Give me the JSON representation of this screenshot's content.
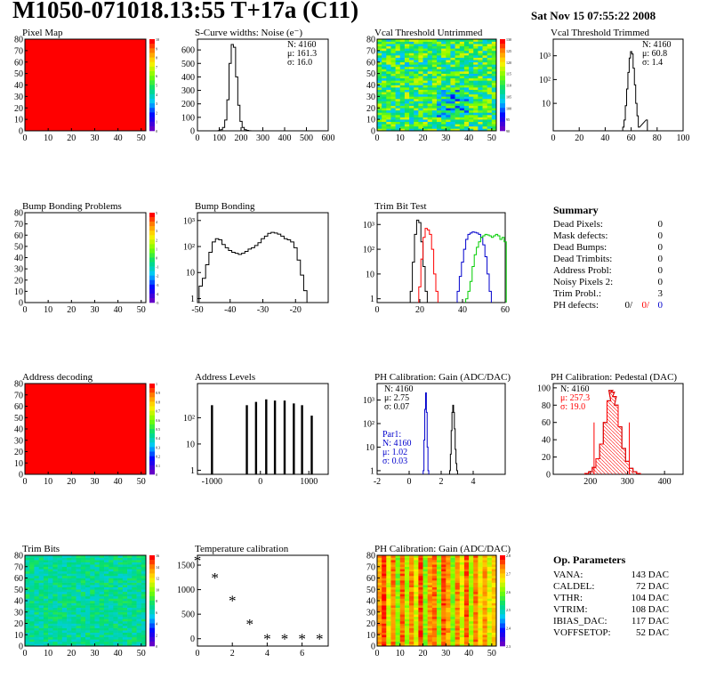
{
  "header": {
    "title": "M1050-071018.13:55 T+17a (C11)",
    "date": "Sat Nov 15 07:55:22 2008"
  },
  "colors": {
    "red": "#ff0000",
    "blue": "#0000cc",
    "green": "#00cc00",
    "black": "#000000"
  },
  "chart_data": [
    {
      "id": "pixel-map",
      "type": "heatmap",
      "title": "Pixel Map",
      "xlim": [
        0,
        52
      ],
      "ylim": [
        0,
        80
      ],
      "xticks": [
        0,
        10,
        20,
        30,
        40,
        50
      ],
      "yticks": [
        0,
        10,
        20,
        30,
        40,
        50,
        60,
        70,
        80
      ],
      "fill": "uniform",
      "value": 10,
      "zlim": [
        0,
        10
      ],
      "palette_ticks": [
        "10",
        "9",
        "8",
        "7",
        "6",
        "5",
        "4",
        "3",
        "2",
        "1",
        "0"
      ]
    },
    {
      "id": "scurve-noise",
      "type": "histogram",
      "title": "S-Curve widths: Noise (e⁻)",
      "xlim": [
        0,
        600
      ],
      "ylim": [
        0,
        680
      ],
      "xticks": [
        0,
        100,
        200,
        300,
        400,
        500,
        600
      ],
      "yticks": [
        0,
        100,
        200,
        300,
        400,
        500,
        600
      ],
      "stats": [
        "N: 4160",
        "μ: 161.3",
        "σ: 16.0"
      ],
      "series": [
        {
          "color": "black",
          "x": [
            100,
            110,
            120,
            130,
            140,
            150,
            160,
            170,
            180,
            190,
            200,
            210,
            220,
            230,
            240
          ],
          "y": [
            2,
            8,
            25,
            80,
            230,
            500,
            640,
            620,
            400,
            190,
            70,
            25,
            8,
            3,
            1
          ]
        }
      ]
    },
    {
      "id": "vcal-untrimmed",
      "type": "heatmap",
      "title": "Vcal Threshold Untrimmed",
      "xlim": [
        0,
        52
      ],
      "ylim": [
        0,
        80
      ],
      "xticks": [
        0,
        10,
        20,
        30,
        40,
        50
      ],
      "yticks": [
        0,
        10,
        20,
        30,
        40,
        50,
        60,
        70,
        80
      ],
      "fill": "noise",
      "mean": 0.5,
      "spread": 0.22,
      "seed": 11,
      "palette_ticks": [
        "130",
        "125",
        "120",
        "115",
        "110",
        "105",
        "100",
        "95",
        "90"
      ]
    },
    {
      "id": "vcal-trimmed",
      "type": "histogram",
      "title": "Vcal Threshold Trimmed",
      "xlim": [
        0,
        100
      ],
      "log": true,
      "ylim": [
        0.7,
        5000
      ],
      "xticks": [
        0,
        20,
        40,
        60,
        80,
        100
      ],
      "yticks": [
        10,
        100,
        1000
      ],
      "ytick_labels": [
        "10",
        "10²",
        "10³"
      ],
      "stats": [
        "N: 4160",
        "μ: 60.8",
        "σ: 1.4"
      ],
      "series": [
        {
          "color": "black",
          "x": [
            54,
            55,
            56,
            57,
            58,
            59,
            60,
            61,
            62,
            63,
            64,
            65,
            66,
            72
          ],
          "y": [
            1,
            2,
            8,
            40,
            200,
            800,
            1500,
            1200,
            300,
            60,
            10,
            3,
            1,
            2
          ]
        }
      ]
    },
    {
      "id": "bump-bonding-problems",
      "type": "heatmap",
      "title": "Bump Bonding Problems",
      "xlim": [
        0,
        52
      ],
      "ylim": [
        0,
        80
      ],
      "xticks": [
        0,
        10,
        20,
        30,
        40,
        50
      ],
      "yticks": [
        0,
        10,
        20,
        30,
        40,
        50,
        60,
        70,
        80
      ],
      "fill": "empty",
      "palette_ticks": [
        "5",
        "4",
        "3",
        "2",
        "1",
        "0",
        "-1",
        "-2",
        "-3",
        "-4",
        "-5"
      ]
    },
    {
      "id": "bump-bonding",
      "type": "histogram",
      "title": "Bump Bonding",
      "xlim": [
        -50,
        -10
      ],
      "log": true,
      "ylim": [
        0.7,
        2000
      ],
      "xticks": [
        -50,
        -40,
        -30,
        -20
      ],
      "yticks": [
        1,
        10,
        100,
        1000
      ],
      "ytick_labels": [
        "1",
        "10",
        "10²",
        "10³"
      ],
      "series": [
        {
          "color": "black",
          "x": [
            -49,
            -48,
            -47,
            -46,
            -45,
            -44,
            -43,
            -42,
            -41,
            -40,
            -39,
            -38,
            -37,
            -36,
            -35,
            -34,
            -33,
            -32,
            -31,
            -30,
            -29,
            -28,
            -27,
            -26,
            -25,
            -24,
            -23,
            -22,
            -21,
            -20,
            -19,
            -18,
            -17,
            -16
          ],
          "y": [
            3,
            6,
            20,
            60,
            150,
            200,
            180,
            120,
            90,
            70,
            60,
            55,
            50,
            55,
            65,
            80,
            90,
            110,
            140,
            200,
            250,
            320,
            350,
            330,
            300,
            250,
            200,
            180,
            150,
            90,
            30,
            8,
            2,
            0.6
          ]
        }
      ]
    },
    {
      "id": "trim-bit-test",
      "type": "histogram",
      "title": "Trim Bit Test",
      "xlim": [
        0,
        60
      ],
      "log": true,
      "ylim": [
        0.7,
        3000
      ],
      "xticks": [
        0,
        20,
        40,
        60
      ],
      "yticks": [
        1,
        10,
        100,
        1000
      ],
      "ytick_labels": [
        "1",
        "10",
        "10²",
        "10³"
      ],
      "series": [
        {
          "color": "black",
          "x": [
            16,
            17,
            18,
            19,
            20,
            21,
            22,
            23
          ],
          "y": [
            2,
            30,
            400,
            1500,
            1200,
            200,
            20,
            2
          ]
        },
        {
          "color": "red",
          "x": [
            20,
            21,
            22,
            23,
            24,
            25,
            26,
            27,
            28
          ],
          "y": [
            3,
            40,
            300,
            700,
            600,
            400,
            100,
            10,
            2
          ]
        },
        {
          "color": "blue",
          "x": [
            38,
            39,
            40,
            41,
            42,
            43,
            44,
            45,
            46,
            47,
            48,
            49,
            50,
            51,
            52,
            53
          ],
          "y": [
            2,
            8,
            30,
            100,
            250,
            400,
            450,
            500,
            480,
            450,
            400,
            300,
            150,
            50,
            10,
            2
          ]
        },
        {
          "color": "green",
          "x": [
            42,
            43,
            44,
            45,
            46,
            47,
            48,
            49,
            50,
            51,
            52,
            53,
            54,
            55,
            56,
            57,
            58,
            59,
            60
          ],
          "y": [
            1,
            2,
            5,
            20,
            60,
            120,
            200,
            300,
            350,
            400,
            380,
            350,
            300,
            350,
            400,
            350,
            250,
            300,
            200
          ]
        }
      ]
    },
    {
      "id": "address-decoding",
      "type": "heatmap",
      "title": "Address decoding",
      "xlim": [
        0,
        52
      ],
      "ylim": [
        0,
        80
      ],
      "xticks": [
        0,
        10,
        20,
        30,
        40,
        50
      ],
      "yticks": [
        0,
        10,
        20,
        30,
        40,
        50,
        60,
        70,
        80
      ],
      "fill": "uniform",
      "value": 1,
      "zlim": [
        0,
        1
      ],
      "palette_ticks": [
        "1",
        "0.9",
        "0.8",
        "0.7",
        "0.6",
        "0.5",
        "0.4",
        "0.3",
        "0.2",
        "0.1",
        "0"
      ]
    },
    {
      "id": "address-levels",
      "type": "histogram",
      "title": "Address Levels",
      "xlim": [
        -1300,
        1400
      ],
      "log": true,
      "ylim": [
        0.7,
        2000
      ],
      "xticks": [
        -1000,
        0,
        1000
      ],
      "yticks": [
        1,
        10,
        100
      ],
      "ytick_labels": [
        "1",
        "10",
        "10²"
      ],
      "spikes": true,
      "series": [
        {
          "color": "black",
          "x": [
            -1000,
            -280,
            -90,
            120,
            300,
            500,
            690,
            860,
            1060
          ],
          "y": [
            300,
            300,
            400,
            500,
            450,
            450,
            350,
            300,
            120
          ]
        }
      ]
    },
    {
      "id": "ph-gain",
      "type": "histogram",
      "title": "PH Calibration: Gain (ADC/DAC)",
      "xlim": [
        -2,
        6
      ],
      "log": true,
      "ylim": [
        0.7,
        5000
      ],
      "xticks": [
        -2,
        0,
        2,
        4
      ],
      "yticks": [
        1,
        10,
        100,
        1000
      ],
      "ytick_labels": [
        "1",
        "10",
        "10²",
        "10³"
      ],
      "stats": [
        "N: 4160",
        "μ: 2.75",
        "σ: 0.07"
      ],
      "stats2": [
        "Par1:",
        "N: 4160",
        "μ: 1.02",
        "σ: 0.03"
      ],
      "series": [
        {
          "color": "blue",
          "x": [
            0.9,
            0.95,
            1.0,
            1.05,
            1.1,
            1.15,
            1.2
          ],
          "y": [
            1,
            20,
            400,
            2000,
            300,
            10,
            1
          ]
        },
        {
          "color": "black",
          "x": [
            2.55,
            2.6,
            2.65,
            2.7,
            2.75,
            2.8,
            2.85,
            2.9,
            2.95,
            3.0
          ],
          "y": [
            1,
            5,
            50,
            300,
            600,
            300,
            60,
            8,
            2,
            1
          ]
        }
      ]
    },
    {
      "id": "ph-pedestal",
      "type": "histogram",
      "title": "PH Calibration: Pedestal (DAC)",
      "xlim": [
        100,
        450
      ],
      "ylim": [
        0,
        105
      ],
      "xticks": [
        200,
        300,
        400
      ],
      "yticks": [
        0,
        20,
        40,
        60,
        80,
        100
      ],
      "stats": [
        "N: 4160"
      ],
      "stats_red": [
        "μ: 257.3",
        "σ: 19.0"
      ],
      "series": [
        {
          "color": "black",
          "x": [
            190,
            200,
            210,
            220,
            230,
            240,
            250,
            255,
            260,
            265,
            270,
            280,
            290,
            300,
            310,
            320,
            330
          ],
          "y": [
            1,
            3,
            8,
            18,
            35,
            60,
            85,
            97,
            95,
            90,
            80,
            55,
            30,
            15,
            7,
            3,
            1
          ]
        },
        {
          "color": "red",
          "x": [
            190,
            200,
            210,
            220,
            230,
            240,
            250,
            255,
            260,
            265,
            270,
            280,
            290,
            300,
            310,
            320,
            330
          ],
          "y": [
            1,
            3,
            8,
            18,
            35,
            60,
            85,
            97,
            95,
            90,
            80,
            55,
            30,
            15,
            7,
            3,
            1
          ]
        }
      ],
      "limit_lines": [
        210,
        305
      ]
    },
    {
      "id": "trim-bits",
      "type": "heatmap",
      "title": "Trim Bits",
      "xlim": [
        0,
        52
      ],
      "ylim": [
        0,
        80
      ],
      "xticks": [
        0,
        10,
        20,
        30,
        40,
        50
      ],
      "yticks": [
        0,
        10,
        20,
        30,
        40,
        50,
        60,
        70,
        80
      ],
      "fill": "noise",
      "mean": 0.42,
      "spread": 0.08,
      "seed": 7,
      "palette_ticks": [
        "16",
        "14",
        "12",
        "10",
        "8",
        "6",
        "4",
        "2",
        "0"
      ]
    },
    {
      "id": "temperature-calibration",
      "type": "scatter",
      "title": "Temperature calibration",
      "xlim": [
        0,
        7.5
      ],
      "ylim": [
        -150,
        1700
      ],
      "xticks": [
        0,
        2,
        4,
        6
      ],
      "yticks": [
        0,
        500,
        1000,
        1500
      ],
      "marker": "*",
      "series": [
        {
          "color": "black",
          "x": [
            0,
            1,
            2,
            3,
            4,
            5,
            6,
            7
          ],
          "y": [
            1600,
            1250,
            780,
            300,
            0,
            0,
            0,
            0
          ]
        }
      ]
    },
    {
      "id": "ph-gain-map",
      "type": "heatmap",
      "title": "PH Calibration: Gain (ADC/DAC)",
      "xlim": [
        0,
        52
      ],
      "ylim": [
        0,
        80
      ],
      "xticks": [
        0,
        10,
        20,
        30,
        40,
        50
      ],
      "yticks": [
        0,
        10,
        20,
        30,
        40,
        50,
        60,
        70,
        80
      ],
      "fill": "stripes",
      "seed": 3,
      "palette_ticks": [
        "2.8",
        "2.7",
        "2.6",
        "2.5",
        "2.4",
        "2.3"
      ]
    }
  ],
  "summary": {
    "title": "Summary",
    "rows": [
      {
        "label": "Dead Pixels:",
        "value": "0"
      },
      {
        "label": "Mask defects:",
        "value": "0"
      },
      {
        "label": "Dead Bumps:",
        "value": "0"
      },
      {
        "label": "Dead Trimbits:",
        "value": "0"
      },
      {
        "label": "Address Probl:",
        "value": "0"
      },
      {
        "label": "Noisy Pixels 2:",
        "value": "0"
      },
      {
        "label": "Trim Probl.:",
        "value": "3"
      }
    ],
    "ph_defects": {
      "label": "PH defects:",
      "values": [
        "0/",
        "0/",
        "0"
      ]
    }
  },
  "parameters": {
    "title": "Op. Parameters",
    "rows": [
      {
        "label": "VANA:",
        "value": "143 DAC"
      },
      {
        "label": "CALDEL:",
        "value": "72 DAC"
      },
      {
        "label": "VTHR:",
        "value": "104 DAC"
      },
      {
        "label": "VTRIM:",
        "value": "108 DAC"
      },
      {
        "label": "IBIAS_DAC:",
        "value": "117 DAC"
      },
      {
        "label": "VOFFSETOP:",
        "value": "52 DAC"
      }
    ]
  }
}
